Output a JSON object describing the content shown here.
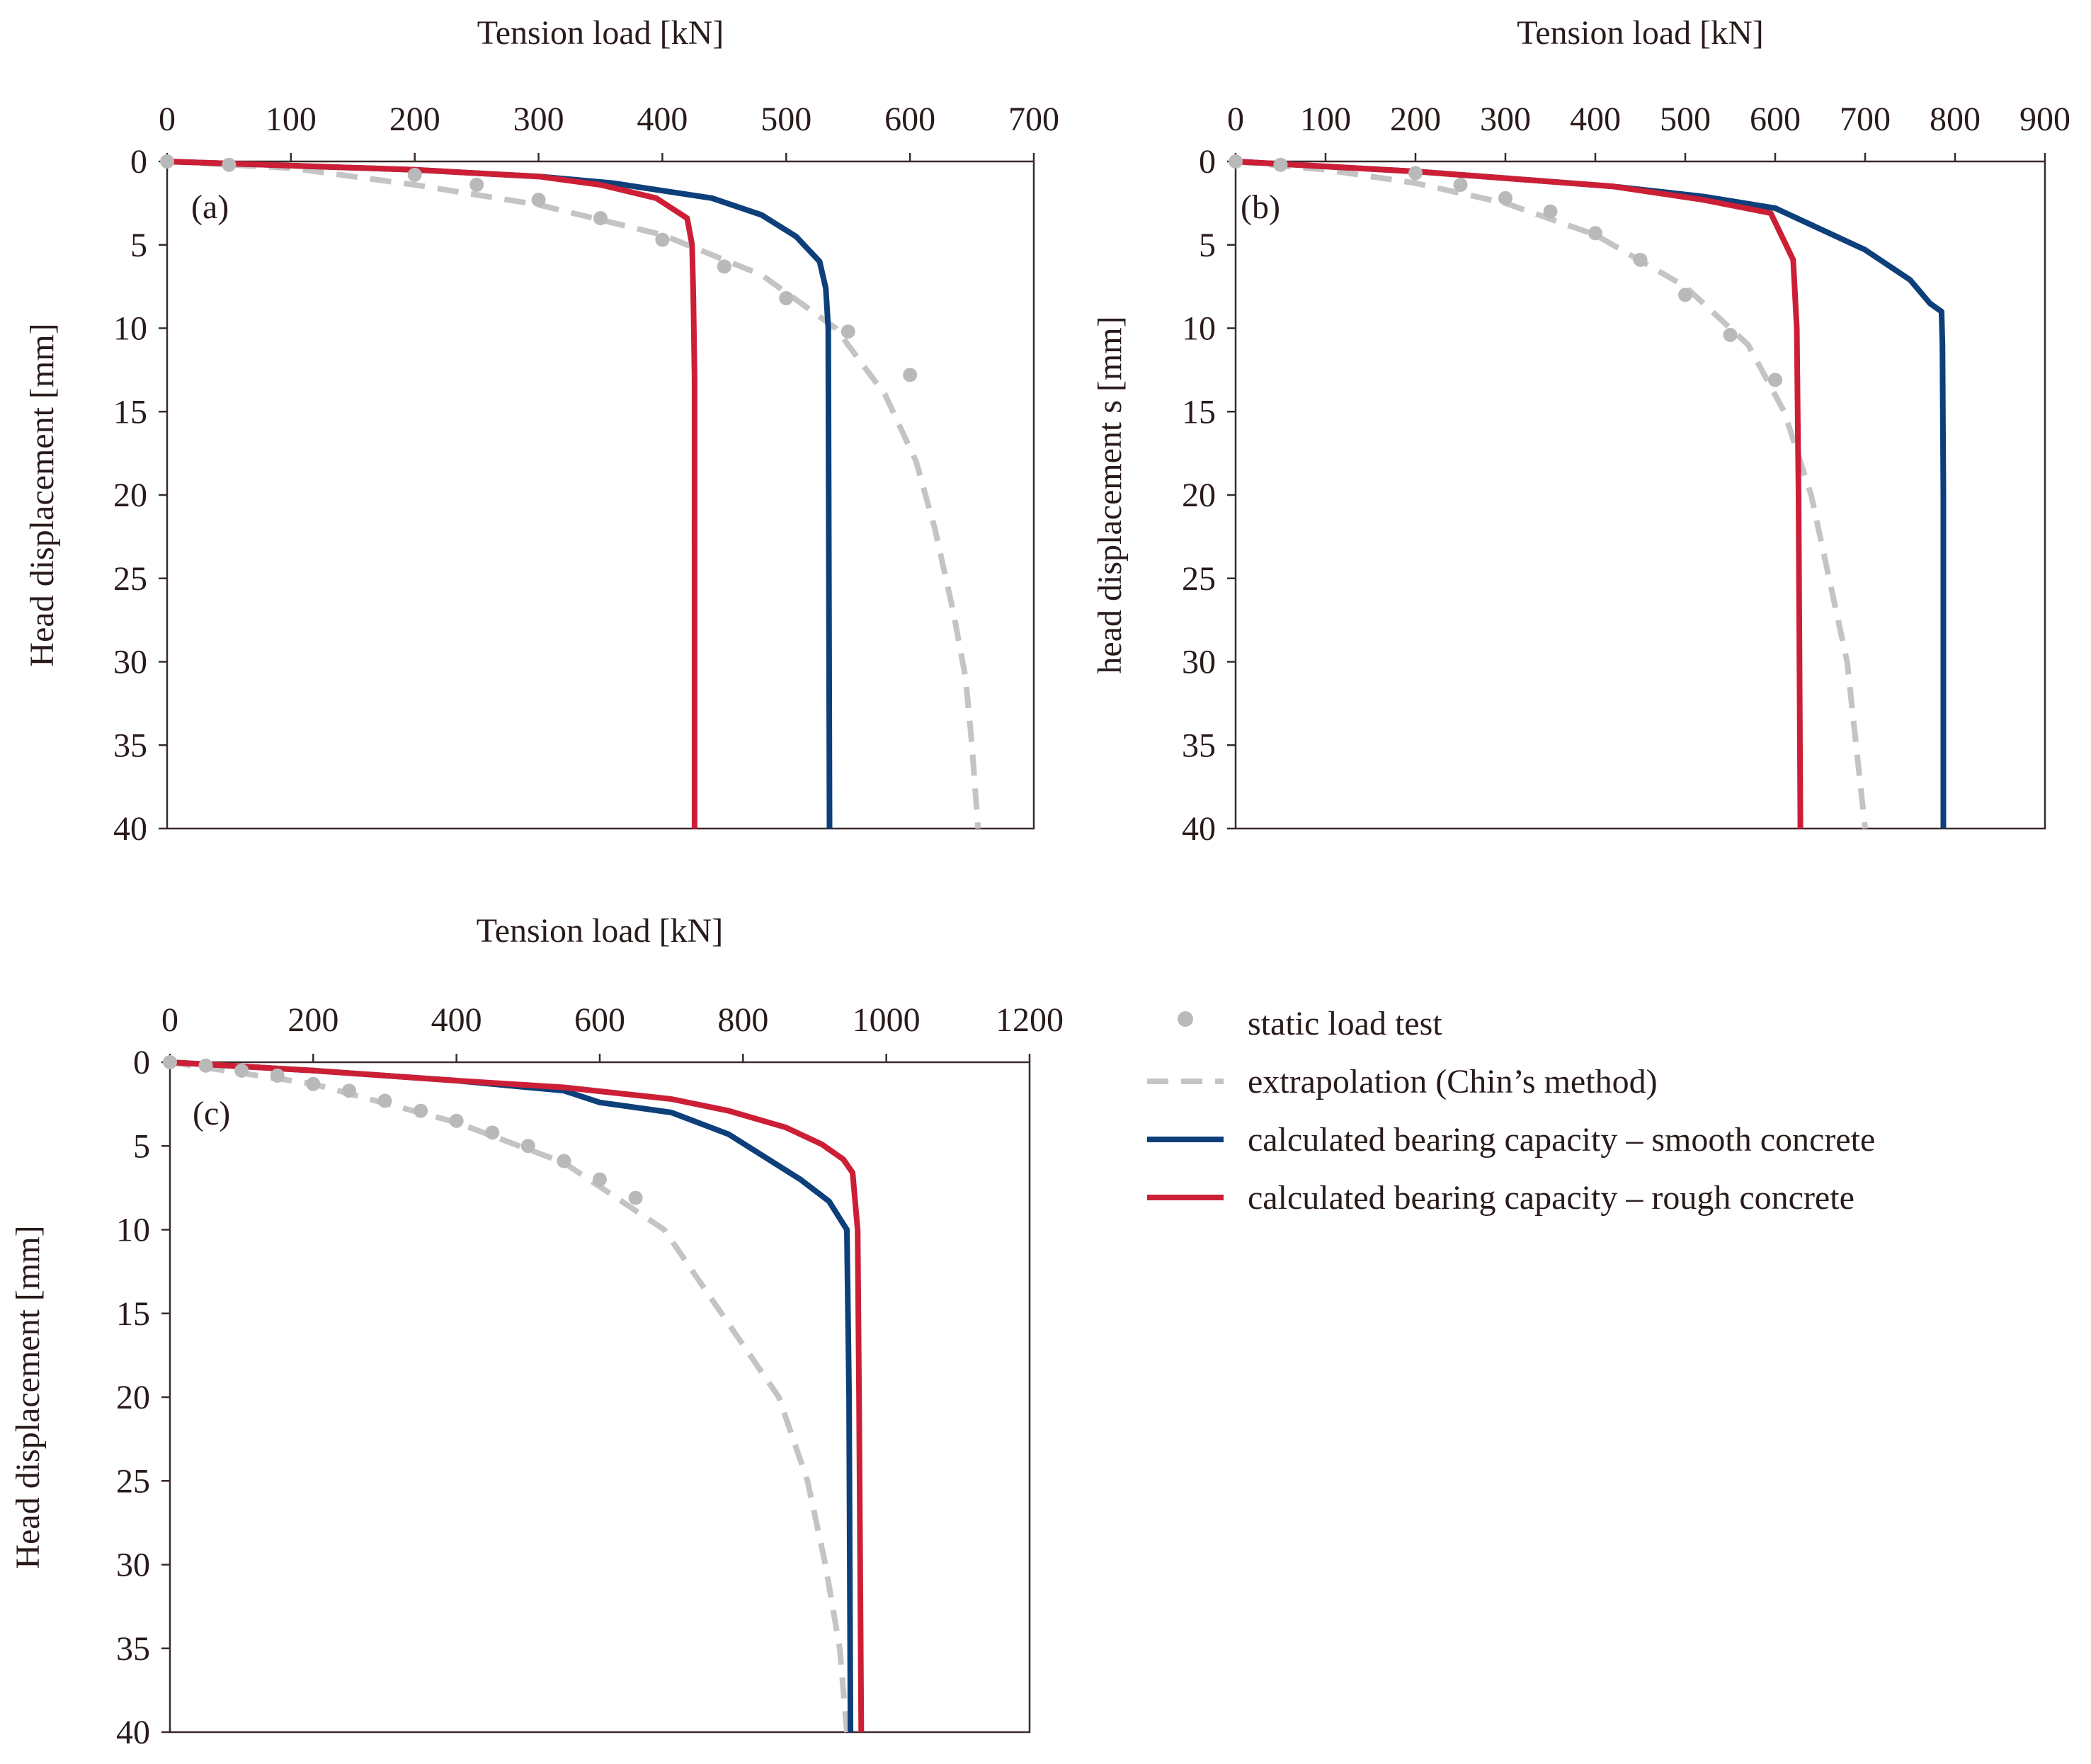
{
  "colors": {
    "test": "#b9b9b9",
    "extrapolation": "#c4c4c4",
    "smooth": "#0d3f7a",
    "rough": "#cc1f36",
    "axis": "#3a2a2a"
  },
  "legend": [
    {
      "key": "test",
      "label": "static load test",
      "kind": "marker"
    },
    {
      "key": "extrapolation",
      "label": "extrapolation (Chin’s method)",
      "kind": "dash"
    },
    {
      "key": "smooth",
      "label": "calculated bearing capacity – smooth concrete",
      "kind": "line"
    },
    {
      "key": "rough",
      "label": "calculated bearing capacity – rough concrete",
      "kind": "line"
    }
  ],
  "chart_data": [
    {
      "type": "line",
      "panel": "(a)",
      "xlabel": "Tension load [kN]",
      "ylabel": "Head displacement [mm]",
      "xlim": [
        0,
        700
      ],
      "ylim": [
        0,
        40
      ],
      "y_inverted": true,
      "x_axis_position": "top",
      "xticks": [
        "0",
        "100",
        "200",
        "300",
        "400",
        "500",
        "600",
        "700"
      ],
      "yticks": [
        "0",
        "5",
        "10",
        "15",
        "20",
        "25",
        "30",
        "35",
        "40"
      ],
      "series": [
        {
          "key": "test",
          "name": "static load test",
          "style": "marker",
          "points": [
            [
              0,
              0
            ],
            [
              50,
              0.2
            ],
            [
              200,
              0.8
            ],
            [
              250,
              1.4
            ],
            [
              300,
              2.3
            ],
            [
              350,
              3.4
            ],
            [
              400,
              4.7
            ],
            [
              450,
              6.3
            ],
            [
              500,
              8.2
            ],
            [
              550,
              10.2
            ],
            [
              600,
              12.8
            ]
          ]
        },
        {
          "key": "extrapolation",
          "name": "extrapolation (Chin’s method)",
          "style": "dash",
          "points": [
            [
              0,
              0
            ],
            [
              100,
              0.4
            ],
            [
              200,
              1.4
            ],
            [
              300,
              2.6
            ],
            [
              400,
              4.4
            ],
            [
              480,
              6.8
            ],
            [
              540,
              10
            ],
            [
              580,
              14
            ],
            [
              605,
              18
            ],
            [
              620,
              22
            ],
            [
              635,
              27
            ],
            [
              645,
              31
            ],
            [
              650,
              35
            ],
            [
              655,
              40
            ]
          ]
        },
        {
          "key": "smooth",
          "name": "calculated bearing capacity – smooth concrete",
          "style": "line",
          "points": [
            [
              0,
              0
            ],
            [
              200,
              0.5
            ],
            [
              300,
              0.9
            ],
            [
              360,
              1.3
            ],
            [
              440,
              2.2
            ],
            [
              480,
              3.2
            ],
            [
              508,
              4.5
            ],
            [
              527,
              6
            ],
            [
              532,
              7.6
            ],
            [
              534,
              10
            ],
            [
              535,
              40
            ]
          ]
        },
        {
          "key": "rough",
          "name": "calculated bearing capacity – rough concrete",
          "style": "line",
          "points": [
            [
              0,
              0
            ],
            [
              200,
              0.5
            ],
            [
              300,
              0.9
            ],
            [
              350,
              1.4
            ],
            [
              395,
              2.2
            ],
            [
              420,
              3.4
            ],
            [
              424,
              5
            ],
            [
              425,
              8
            ],
            [
              426,
              13
            ],
            [
              426,
              40
            ]
          ]
        }
      ]
    },
    {
      "type": "line",
      "panel": "(b)",
      "xlabel": "Tension load [kN]",
      "ylabel": "head displacement s [mm]",
      "xlim": [
        0,
        900
      ],
      "ylim": [
        0,
        40
      ],
      "y_inverted": true,
      "x_axis_position": "top",
      "xticks": [
        "0",
        "100",
        "200",
        "300",
        "400",
        "500",
        "600",
        "700",
        "800",
        "900"
      ],
      "yticks": [
        "0",
        "5",
        "10",
        "15",
        "20",
        "25",
        "30",
        "35",
        "40"
      ],
      "series": [
        {
          "key": "test",
          "name": "static load test",
          "style": "marker",
          "points": [
            [
              0,
              0
            ],
            [
              50,
              0.2
            ],
            [
              200,
              0.7
            ],
            [
              250,
              1.4
            ],
            [
              300,
              2.2
            ],
            [
              350,
              3
            ],
            [
              400,
              4.3
            ],
            [
              450,
              5.9
            ],
            [
              500,
              8
            ],
            [
              550,
              10.4
            ],
            [
              600,
              13.1
            ]
          ]
        },
        {
          "key": "extrapolation",
          "name": "extrapolation (Chin’s method)",
          "style": "dash",
          "points": [
            [
              0,
              0
            ],
            [
              100,
              0.5
            ],
            [
              200,
              1.3
            ],
            [
              300,
              2.5
            ],
            [
              400,
              4.4
            ],
            [
              500,
              7.5
            ],
            [
              570,
              11
            ],
            [
              610,
              15
            ],
            [
              640,
              20
            ],
            [
              660,
              25
            ],
            [
              680,
              30
            ],
            [
              690,
              35
            ],
            [
              700,
              40
            ]
          ]
        },
        {
          "key": "smooth",
          "name": "calculated bearing capacity – smooth concrete",
          "style": "line",
          "points": [
            [
              0,
              0
            ],
            [
              200,
              0.6
            ],
            [
              300,
              1
            ],
            [
              420,
              1.5
            ],
            [
              520,
              2.1
            ],
            [
              600,
              2.8
            ],
            [
              700,
              5.3
            ],
            [
              750,
              7.1
            ],
            [
              772,
              8.5
            ],
            [
              785,
              9
            ],
            [
              786,
              11
            ],
            [
              787,
              20
            ],
            [
              787,
              40
            ]
          ]
        },
        {
          "key": "rough",
          "name": "calculated bearing capacity – rough concrete",
          "style": "line",
          "points": [
            [
              0,
              0
            ],
            [
              200,
              0.6
            ],
            [
              300,
              1
            ],
            [
              420,
              1.5
            ],
            [
              520,
              2.3
            ],
            [
              595,
              3.1
            ],
            [
              620,
              5.9
            ],
            [
              624,
              10
            ],
            [
              626,
              20
            ],
            [
              628,
              40
            ]
          ]
        }
      ]
    },
    {
      "type": "line",
      "panel": "(c)",
      "xlabel": "Tension load [kN]",
      "ylabel": "Head displacement [mm]",
      "xlim": [
        0,
        1200
      ],
      "ylim": [
        0,
        40
      ],
      "y_inverted": true,
      "x_axis_position": "top",
      "xticks": [
        "0",
        "200",
        "400",
        "600",
        "800",
        "1000",
        "1200"
      ],
      "yticks": [
        "0",
        "5",
        "10",
        "15",
        "20",
        "25",
        "30",
        "35",
        "40"
      ],
      "series": [
        {
          "key": "test",
          "name": "static load test",
          "style": "marker",
          "points": [
            [
              0,
              0
            ],
            [
              50,
              0.2
            ],
            [
              100,
              0.5
            ],
            [
              150,
              0.8
            ],
            [
              200,
              1.3
            ],
            [
              250,
              1.7
            ],
            [
              300,
              2.3
            ],
            [
              350,
              2.9
            ],
            [
              400,
              3.5
            ],
            [
              450,
              4.2
            ],
            [
              500,
              5
            ],
            [
              550,
              5.9
            ],
            [
              600,
              7
            ],
            [
              650,
              8.1
            ]
          ]
        },
        {
          "key": "extrapolation",
          "name": "extrapolation (Chin’s method)",
          "style": "dash",
          "points": [
            [
              0,
              0
            ],
            [
              200,
              1.3
            ],
            [
              400,
              3.6
            ],
            [
              550,
              6
            ],
            [
              690,
              10
            ],
            [
              770,
              15
            ],
            [
              850,
              20
            ],
            [
              890,
              25
            ],
            [
              915,
              30
            ],
            [
              935,
              35
            ],
            [
              945,
              40
            ]
          ]
        },
        {
          "key": "smooth",
          "name": "calculated bearing capacity – smooth concrete",
          "style": "line",
          "points": [
            [
              0,
              0
            ],
            [
              200,
              0.5
            ],
            [
              400,
              1.1
            ],
            [
              550,
              1.7
            ],
            [
              600,
              2.4
            ],
            [
              700,
              3
            ],
            [
              780,
              4.3
            ],
            [
              880,
              7
            ],
            [
              920,
              8.3
            ],
            [
              945,
              10
            ],
            [
              948,
              20
            ],
            [
              950,
              40
            ]
          ]
        },
        {
          "key": "rough",
          "name": "calculated bearing capacity – rough concrete",
          "style": "line",
          "points": [
            [
              0,
              0
            ],
            [
              200,
              0.5
            ],
            [
              400,
              1.1
            ],
            [
              550,
              1.5
            ],
            [
              700,
              2.2
            ],
            [
              780,
              2.9
            ],
            [
              860,
              3.9
            ],
            [
              910,
              4.9
            ],
            [
              940,
              5.8
            ],
            [
              953,
              6.6
            ],
            [
              960,
              10
            ],
            [
              962,
              20
            ],
            [
              965,
              40
            ]
          ]
        }
      ]
    }
  ]
}
